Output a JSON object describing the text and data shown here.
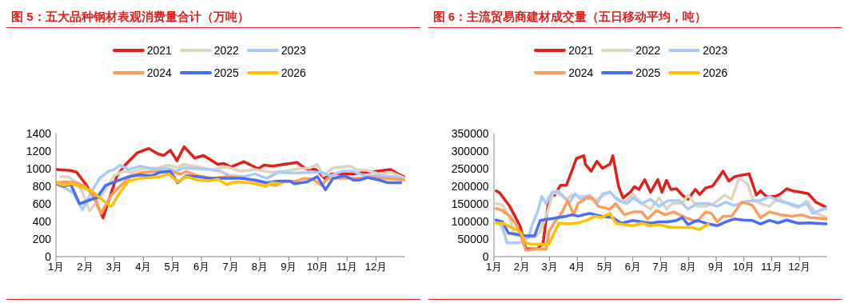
{
  "chart_data": [
    {
      "type": "line",
      "title": "图 5：五大品种钢材表观消费量合计（万吨）",
      "legend": "top",
      "line_style": "solid",
      "marker": "none",
      "grid": false,
      "xlim": [
        1,
        13
      ],
      "xticks": [
        {
          "value": 1,
          "label": "1月"
        },
        {
          "value": 2,
          "label": "2月"
        },
        {
          "value": 3,
          "label": "3月"
        },
        {
          "value": 4,
          "label": "4月"
        },
        {
          "value": 5,
          "label": "5月"
        },
        {
          "value": 6,
          "label": "6月"
        },
        {
          "value": 7,
          "label": "7月"
        },
        {
          "value": 8,
          "label": "8月"
        },
        {
          "value": 9,
          "label": "9月"
        },
        {
          "value": 10,
          "label": "10月"
        },
        {
          "value": 11,
          "label": "11月"
        },
        {
          "value": 12,
          "label": "12月"
        }
      ],
      "ylim": [
        0,
        1400
      ],
      "yticks": [
        0,
        200,
        400,
        600,
        800,
        1000,
        1200,
        1400
      ],
      "series": [
        {
          "name": "2021",
          "color": "#e0201b",
          "x": [
            1,
            1.51,
            1.71,
            2.01,
            2.31,
            2.62,
            2.8,
            3.1,
            3.4,
            3.79,
            4.19,
            4.49,
            4.7,
            4.93,
            5.16,
            5.4,
            5.77,
            6.07,
            6.56,
            6.76,
            7.01,
            7.46,
            7.95,
            8.15,
            8.45,
            8.84,
            9.29,
            9.58,
            9.93,
            10.23,
            10.48,
            10.82,
            11.22,
            11.61,
            12.01,
            12.5,
            12.75,
            13
          ],
          "values": [
            990,
            980,
            960,
            830,
            670,
            440,
            630,
            920,
            1050,
            1180,
            1230,
            1170,
            1150,
            1210,
            1090,
            1250,
            1120,
            1150,
            1050,
            1060,
            1020,
            1080,
            1000,
            1040,
            1030,
            1050,
            1070,
            1000,
            990,
            890,
            940,
            940,
            940,
            960,
            970,
            990,
            940,
            900
          ]
        },
        {
          "name": "2022",
          "color": "#ddd5c0",
          "x": [
            1.17,
            1.42,
            1.71,
            1.91,
            2.16,
            2.41,
            2.7,
            3,
            3.3,
            3.59,
            3.99,
            4.49,
            4.88,
            5.18,
            5.38,
            5.87,
            6.37,
            6.86,
            7.36,
            7.85,
            8.35,
            8.84,
            9.34,
            9.73,
            9.98,
            10.18,
            10.52,
            10.82,
            11.12,
            11.32,
            11.71,
            12.11,
            12.5,
            12.8,
            13
          ],
          "values": [
            910,
            910,
            840,
            730,
            520,
            630,
            760,
            920,
            970,
            960,
            1000,
            1010,
            1040,
            1010,
            1050,
            1020,
            990,
            1020,
            970,
            990,
            960,
            970,
            1000,
            1010,
            1050,
            920,
            1010,
            1020,
            1030,
            990,
            980,
            940,
            960,
            920,
            890
          ]
        },
        {
          "name": "2023",
          "color": "#a9cbfb",
          "x": [
            1,
            1.32,
            1.61,
            1.91,
            2.21,
            2.5,
            2.8,
            3,
            3.2,
            3.5,
            3.89,
            4.29,
            4.88,
            5.13,
            5.38,
            5.87,
            6.27,
            6.66,
            6.96,
            7.46,
            7.85,
            8.25,
            8.64,
            9.14,
            9.83,
            10.13,
            10.43,
            10.82,
            11.22,
            11.61,
            12.11,
            12.6,
            13
          ],
          "values": [
            830,
            780,
            720,
            530,
            730,
            890,
            970,
            990,
            1040,
            990,
            1030,
            1000,
            1000,
            970,
            1010,
            1000,
            990,
            970,
            920,
            910,
            940,
            890,
            960,
            950,
            960,
            960,
            920,
            970,
            970,
            920,
            920,
            910,
            880
          ]
        },
        {
          "name": "2024",
          "color": "#fc9d5e",
          "x": [
            1,
            1.32,
            1.71,
            2.01,
            2.31,
            2.55,
            2.9,
            3.2,
            3.59,
            3.99,
            4.49,
            4.98,
            5.28,
            5.48,
            5.87,
            6.37,
            6.86,
            7.46,
            7.85,
            8.25,
            8.54,
            8.84,
            9.24,
            9.53,
            9.83,
            10.13,
            10.33,
            10.82,
            11.32,
            11.81,
            12.31,
            13
          ],
          "values": [
            840,
            850,
            840,
            800,
            680,
            490,
            700,
            800,
            920,
            960,
            970,
            960,
            940,
            970,
            920,
            890,
            910,
            890,
            860,
            830,
            810,
            850,
            860,
            890,
            880,
            810,
            890,
            890,
            890,
            900,
            890,
            870
          ]
        },
        {
          "name": "2025",
          "color": "#4a6cf7",
          "x": [
            1,
            1.27,
            1.51,
            1.81,
            2.21,
            2.41,
            2.7,
            3.1,
            3.5,
            3.89,
            4.29,
            4.58,
            4.93,
            5.18,
            5.48,
            5.87,
            6.27,
            6.76,
            7.36,
            7.85,
            8.25,
            8.64,
            9.04,
            9.19,
            9.63,
            9.98,
            10.26,
            10.52,
            10.92,
            11.22,
            11.42,
            11.71,
            12.11,
            12.41,
            12.85
          ],
          "values": [
            830,
            800,
            820,
            600,
            650,
            670,
            810,
            860,
            910,
            930,
            920,
            960,
            970,
            840,
            920,
            910,
            890,
            890,
            890,
            870,
            840,
            860,
            860,
            830,
            850,
            910,
            760,
            890,
            920,
            870,
            870,
            900,
            870,
            840,
            840
          ]
        },
        {
          "name": "2026",
          "color": "#ffc000",
          "x": [
            1,
            1.27,
            1.51,
            1.81,
            2.21,
            2.5,
            2.9,
            3.2,
            3.5,
            3.89,
            4.29,
            4.58,
            4.88,
            5.18,
            5.48,
            5.87,
            6.27,
            6.56,
            6.86,
            7.16,
            7.65,
            7.95,
            8.2,
            8.4,
            8.69
          ],
          "values": [
            840,
            810,
            830,
            800,
            750,
            670,
            570,
            730,
            860,
            890,
            900,
            910,
            940,
            850,
            910,
            870,
            860,
            880,
            820,
            850,
            840,
            820,
            800,
            840,
            830
          ]
        }
      ]
    },
    {
      "type": "line",
      "title": "图 6：主流贸易商建材成交量（五日移动平均，吨）",
      "legend": "top",
      "line_style": "solid",
      "marker": "none",
      "grid": false,
      "xlim": [
        1,
        13
      ],
      "xticks": [
        {
          "value": 1,
          "label": "1月"
        },
        {
          "value": 2,
          "label": "2月"
        },
        {
          "value": 3,
          "label": "3月"
        },
        {
          "value": 4,
          "label": "4月"
        },
        {
          "value": 5,
          "label": "5月"
        },
        {
          "value": 6,
          "label": "6月"
        },
        {
          "value": 7,
          "label": "7月"
        },
        {
          "value": 8,
          "label": "8月"
        },
        {
          "value": 9,
          "label": "9月"
        },
        {
          "value": 10,
          "label": "10月"
        },
        {
          "value": 11,
          "label": "11月"
        },
        {
          "value": 12,
          "label": "12月"
        }
      ],
      "ylim": [
        0,
        350000
      ],
      "yticks": [
        0,
        50000,
        100000,
        150000,
        200000,
        250000,
        300000,
        350000
      ],
      "series": [
        {
          "name": "2021",
          "color": "#e0201b",
          "x": [
            1.08,
            1.21,
            1.42,
            1.57,
            1.73,
            1.94,
            2.15,
            2.57,
            2.77,
            2.98,
            3.19,
            3.4,
            3.61,
            3.82,
            3.97,
            4.24,
            4.29,
            4.5,
            4.71,
            4.91,
            5.18,
            5.28,
            5.49,
            5.65,
            5.91,
            6.06,
            6.22,
            6.43,
            6.64,
            6.9,
            7.05,
            7.21,
            7.37,
            7.58,
            7.78,
            7.99,
            8.25,
            8.41,
            8.62,
            8.88,
            9.04,
            9.25,
            9.46,
            9.66,
            9.87,
            10.19,
            10.45,
            10.6,
            10.81,
            11.13,
            11.33,
            11.54,
            11.75,
            12.06,
            12.32,
            12.59,
            13
          ],
          "values": [
            187000,
            181000,
            159000,
            143000,
            119000,
            87000,
            22000,
            22000,
            39000,
            167000,
            175000,
            203000,
            203000,
            247000,
            279000,
            287000,
            263000,
            243000,
            271000,
            251000,
            263000,
            287000,
            199000,
            167000,
            183000,
            199000,
            191000,
            219000,
            183000,
            219000,
            183000,
            217000,
            191000,
            193000,
            175000,
            163000,
            191000,
            177000,
            195000,
            201000,
            219000,
            243000,
            215000,
            227000,
            231000,
            235000,
            175000,
            187000,
            171000,
            171000,
            179000,
            193000,
            187000,
            183000,
            179000,
            155000,
            139000
          ]
        },
        {
          "name": "2022",
          "color": "#ddd5c0",
          "x": [
            1.08,
            1.31,
            1.57,
            1.73,
            2.15,
            2.46,
            2.67,
            2.88,
            3.14,
            3.4,
            3.61,
            3.82,
            4.24,
            4.65,
            4.97,
            5.18,
            5.38,
            5.7,
            6.01,
            6.32,
            6.64,
            6.95,
            7.21,
            7.42,
            7.78,
            7.99,
            8.31,
            8.62,
            8.93,
            9.3,
            9.56,
            9.82,
            10.13,
            10.34,
            10.6,
            10.92,
            11.23,
            11.54,
            11.96,
            12.27,
            12.59,
            13
          ],
          "values": [
            151000,
            147000,
            111000,
            63000,
            55000,
            55000,
            71000,
            115000,
            183000,
            175000,
            163000,
            175000,
            171000,
            159000,
            175000,
            185000,
            167000,
            155000,
            177000,
            151000,
            135000,
            167000,
            135000,
            151000,
            151000,
            175000,
            143000,
            143000,
            151000,
            175000,
            163000,
            223000,
            207000,
            159000,
            151000,
            143000,
            167000,
            151000,
            139000,
            159000,
            123000,
            111000
          ]
        },
        {
          "name": "2023",
          "color": "#a9cbfb",
          "x": [
            1.08,
            1.31,
            1.47,
            1.94,
            2.25,
            2.36,
            2.57,
            2.72,
            2.88,
            3.09,
            3.3,
            3.51,
            3.71,
            3.92,
            4.13,
            4.44,
            4.71,
            4.91,
            5.18,
            5.49,
            5.8,
            6.01,
            6.32,
            6.64,
            6.95,
            7.26,
            7.68,
            7.99,
            8.31,
            8.72,
            9.04,
            9.35,
            9.66,
            9.98,
            10.29,
            10.6,
            10.92,
            11.23,
            11.65,
            11.96,
            12.27,
            12.48,
            13
          ],
          "values": [
            103000,
            83000,
            39000,
            39000,
            55000,
            87000,
            127000,
            171000,
            151000,
            183000,
            187000,
            171000,
            151000,
            179000,
            163000,
            175000,
            151000,
            179000,
            183000,
            159000,
            151000,
            167000,
            151000,
            163000,
            143000,
            159000,
            159000,
            135000,
            151000,
            151000,
            143000,
            155000,
            145000,
            155000,
            159000,
            159000,
            171000,
            159000,
            151000,
            143000,
            151000,
            123000,
            139000
          ]
        },
        {
          "name": "2024",
          "color": "#fc9d5e",
          "x": [
            1.08,
            1.31,
            1.57,
            1.84,
            2.15,
            2.57,
            2.88,
            2.98,
            3.19,
            3.4,
            3.66,
            3.87,
            4.03,
            4.34,
            4.55,
            4.76,
            5.18,
            5.38,
            5.7,
            6.01,
            6.32,
            6.53,
            6.85,
            7.16,
            7.47,
            7.89,
            8.31,
            8.62,
            8.83,
            9.04,
            9.25,
            9.56,
            9.92,
            10.29,
            10.6,
            10.92,
            11.33,
            11.75,
            12.06,
            12.38,
            13
          ],
          "values": [
            137000,
            131000,
            115000,
            87000,
            18000,
            22000,
            21000,
            71000,
            99000,
            119000,
            159000,
            119000,
            151000,
            167000,
            167000,
            143000,
            135000,
            151000,
            119000,
            127000,
            127000,
            107000,
            131000,
            119000,
            127000,
            111000,
            99000,
            127000,
            123000,
            99000,
            115000,
            115000,
            155000,
            147000,
            111000,
            127000,
            119000,
            115000,
            119000,
            111000,
            107000
          ]
        },
        {
          "name": "2025",
          "color": "#4a6cf7",
          "x": [
            1.08,
            1.31,
            1.52,
            1.84,
            2.15,
            2.46,
            2.67,
            2.98,
            3.3,
            3.61,
            3.82,
            4.03,
            4.24,
            4.44,
            4.86,
            5.28,
            5.59,
            6.01,
            6.32,
            6.64,
            6.95,
            7.26,
            7.58,
            7.78,
            7.99,
            8.31,
            8.62,
            9.04,
            9.35,
            9.66,
            9.98,
            10.29,
            10.6,
            10.92,
            11.23,
            11.54,
            11.96,
            12.38,
            13
          ],
          "values": [
            104000,
            99000,
            67000,
            63000,
            59000,
            59000,
            103000,
            107000,
            111000,
            115000,
            119000,
            115000,
            119000,
            123000,
            115000,
            111000,
            95000,
            103000,
            99000,
            95000,
            99000,
            99000,
            103000,
            111000,
            91000,
            103000,
            95000,
            88000,
            99000,
            107000,
            104000,
            103000,
            93000,
            103000,
            96000,
            104000,
            95000,
            96000,
            93000
          ]
        },
        {
          "name": "2026",
          "color": "#ffc000",
          "x": [
            1.08,
            1.31,
            1.63,
            1.94,
            2.15,
            2.36,
            2.77,
            2.98,
            3.19,
            3.35,
            3.71,
            4.03,
            4.34,
            4.65,
            4.86,
            5.18,
            5.38,
            5.7,
            6.01,
            6.32,
            6.64,
            6.95,
            7.37,
            7.78,
            8.1,
            8.41,
            8.72
          ],
          "values": [
            95000,
            95000,
            83000,
            71000,
            39000,
            35000,
            35000,
            35000,
            71000,
            95000,
            93000,
            96000,
            103000,
            115000,
            111000,
            123000,
            95000,
            91000,
            88000,
            95000,
            88000,
            91000,
            83000,
            83000,
            83000,
            77000,
            93000
          ]
        }
      ]
    }
  ]
}
